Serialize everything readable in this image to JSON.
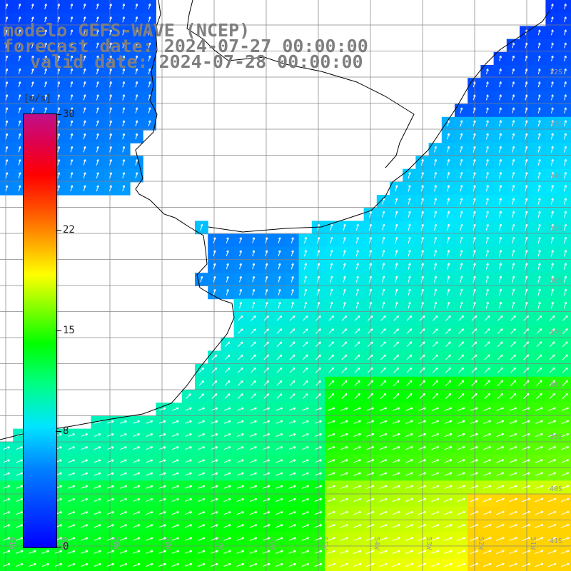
{
  "title": {
    "model": "modelo GEFS-WAVE (NCEP)",
    "forecast": "forecast date: 2024-07-27 00:00:00",
    "valid": "valid date: 2024-07-28 00:00:00"
  },
  "colorbar": {
    "unit": "[m/s]",
    "min": 0,
    "max": 30,
    "ticks": [
      "30",
      "22",
      "15",
      "8",
      "0"
    ],
    "tick_values": [
      30,
      22,
      15,
      8,
      0
    ],
    "colors": [
      "#0000ff",
      "#00e5ff",
      "#00ff00",
      "#ffff00",
      "#ff0000",
      "#c0108a"
    ]
  },
  "map": {
    "lat_labels": [
      "32S",
      "33S",
      "34S",
      "35S",
      "36S",
      "37S",
      "38S",
      "39S",
      "40S",
      "41S"
    ],
    "lon_labels": [
      "61W",
      "60W",
      "59W",
      "58W",
      "57W",
      "56W",
      "55W",
      "54W",
      "53W",
      "52W",
      "51W"
    ],
    "land_color": "#ffffff",
    "grid_color": "#808080",
    "coast_color": "#000000",
    "arrow_color": "#ffffff"
  }
}
